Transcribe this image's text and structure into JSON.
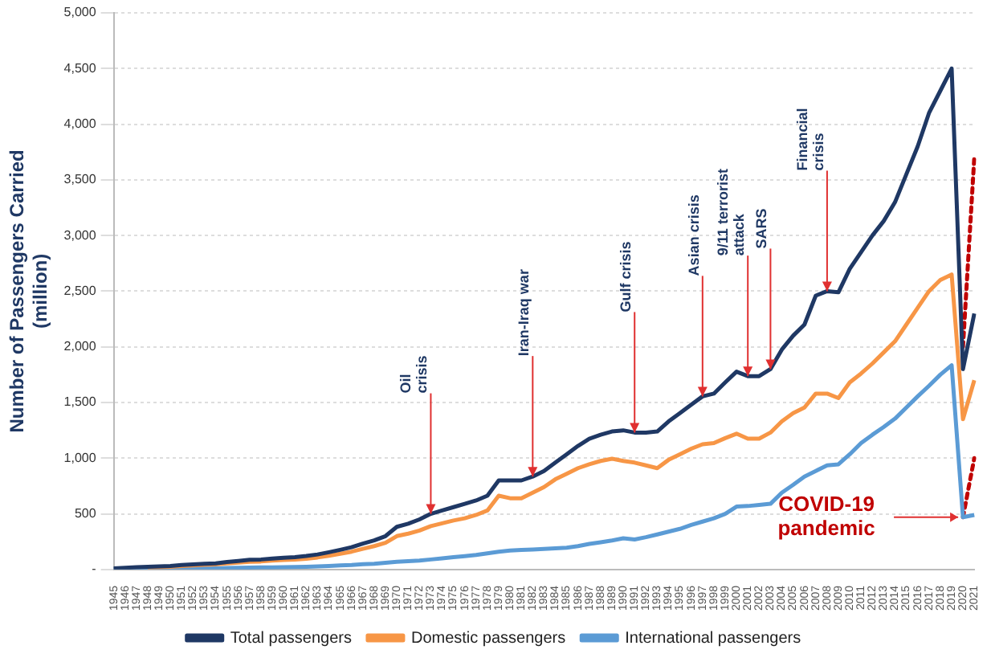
{
  "chart_data": {
    "type": "line",
    "ylabel": "Number of Passengers Carried\n(million)",
    "categories": [
      "1945",
      "1946",
      "1947",
      "1948",
      "1949",
      "1950",
      "1951",
      "1952",
      "1953",
      "1954",
      "1955",
      "1956",
      "1957",
      "1958",
      "1959",
      "1960",
      "1961",
      "1962",
      "1963",
      "1964",
      "1965",
      "1966",
      "1967",
      "1968",
      "1969",
      "1970",
      "1971",
      "1972",
      "1973",
      "1974",
      "1975",
      "1976",
      "1977",
      "1978",
      "1979",
      "1980",
      "1981",
      "1982",
      "1983",
      "1984",
      "1985",
      "1986",
      "1987",
      "1988",
      "1989",
      "1990",
      "1991",
      "1992",
      "1993",
      "1994",
      "1995",
      "1996",
      "1997",
      "1998",
      "1999",
      "2000",
      "2001",
      "2002",
      "2003",
      "2004",
      "2005",
      "2006",
      "2007",
      "2008",
      "2009",
      "2010",
      "2011",
      "2012",
      "2013",
      "2014",
      "2015",
      "2016",
      "2017",
      "2018",
      "2019",
      "2020",
      "2021"
    ],
    "series": [
      {
        "name": "Total passengers",
        "color": "#1f3864",
        "values": [
          10,
          15,
          20,
          24,
          27,
          31,
          40,
          46,
          52,
          55,
          68,
          77,
          87,
          90,
          99,
          106,
          111,
          121,
          135,
          155,
          177,
          200,
          233,
          262,
          300,
          383,
          411,
          450,
          500,
          530,
          560,
          590,
          620,
          663,
          800,
          800,
          800,
          835,
          885,
          960,
          1035,
          1110,
          1175,
          1210,
          1240,
          1250,
          1230,
          1230,
          1240,
          1330,
          1405,
          1480,
          1555,
          1580,
          1680,
          1777,
          1737,
          1737,
          1800,
          1975,
          2100,
          2200,
          2460,
          2500,
          2490,
          2700,
          2850,
          3000,
          3130,
          3300,
          3550,
          3800,
          4100,
          4300,
          4500,
          1800,
          2300
        ]
      },
      {
        "name": "Domestic passengers",
        "color": "#f79646",
        "values": [
          null,
          null,
          null,
          19,
          21,
          25,
          32,
          37,
          42,
          45,
          55,
          62,
          70,
          72,
          80,
          85,
          89,
          97,
          108,
          124,
          141,
          160,
          186,
          210,
          240,
          300,
          322,
          350,
          390,
          415,
          440,
          460,
          490,
          530,
          663,
          640,
          640,
          690,
          740,
          810,
          860,
          910,
          945,
          975,
          995,
          975,
          960,
          935,
          910,
          985,
          1035,
          1085,
          1125,
          1135,
          1180,
          1220,
          1175,
          1175,
          1230,
          1330,
          1405,
          1455,
          1580,
          1580,
          1540,
          1680,
          1760,
          1850,
          1950,
          2050,
          2200,
          2350,
          2500,
          2600,
          2650,
          1350,
          1700
        ]
      },
      {
        "name": "International passengers",
        "color": "#5b9bd5",
        "values": [
          2,
          3,
          4,
          5,
          6,
          6,
          8,
          9,
          10,
          10,
          13,
          15,
          17,
          18,
          19,
          21,
          22,
          24,
          27,
          31,
          36,
          40,
          47,
          52,
          60,
          70,
          75,
          80,
          90,
          100,
          110,
          120,
          130,
          145,
          160,
          170,
          175,
          180,
          185,
          190,
          195,
          210,
          230,
          245,
          260,
          280,
          270,
          290,
          315,
          340,
          365,
          400,
          430,
          460,
          500,
          565,
          570,
          580,
          590,
          690,
          760,
          835,
          885,
          935,
          945,
          1035,
          1135,
          1210,
          1280,
          1355,
          1455,
          1555,
          1650,
          1750,
          1835,
          470,
          490
        ]
      },
      {
        "color": "#c00000",
        "line_style": "dashed",
        "values": [
          null,
          null,
          null,
          null,
          null,
          null,
          null,
          null,
          null,
          null,
          null,
          null,
          null,
          null,
          null,
          null,
          null,
          null,
          null,
          null,
          null,
          null,
          null,
          null,
          null,
          null,
          null,
          null,
          null,
          null,
          null,
          null,
          null,
          null,
          null,
          null,
          null,
          null,
          null,
          null,
          null,
          null,
          null,
          null,
          null,
          null,
          null,
          null,
          null,
          null,
          null,
          null,
          null,
          null,
          null,
          null,
          null,
          null,
          null,
          null,
          null,
          null,
          null,
          null,
          null,
          null,
          null,
          null,
          null,
          null,
          null,
          null,
          null,
          null,
          null,
          2000,
          3700
        ]
      },
      {
        "color": "#c00000",
        "line_style": "dashed",
        "values": [
          null,
          null,
          null,
          null,
          null,
          null,
          null,
          null,
          null,
          null,
          null,
          null,
          null,
          null,
          null,
          null,
          null,
          null,
          null,
          null,
          null,
          null,
          null,
          null,
          null,
          null,
          null,
          null,
          null,
          null,
          null,
          null,
          null,
          null,
          null,
          null,
          null,
          null,
          null,
          null,
          null,
          null,
          null,
          null,
          null,
          null,
          null,
          null,
          null,
          null,
          null,
          null,
          null,
          null,
          null,
          null,
          null,
          null,
          null,
          null,
          null,
          null,
          null,
          null,
          null,
          null,
          null,
          null,
          null,
          null,
          null,
          null,
          null,
          null,
          null,
          470,
          1000
        ]
      }
    ],
    "ylim": [
      0,
      5000
    ],
    "yticks": [
      {
        "value": 0,
        "label": "-"
      },
      {
        "value": 500,
        "label": "500"
      },
      {
        "value": 1000,
        "label": "1,000"
      },
      {
        "value": 1500,
        "label": "1,500"
      },
      {
        "value": 2000,
        "label": "2,000"
      },
      {
        "value": 2500,
        "label": "2,500"
      },
      {
        "value": 3000,
        "label": "3,000"
      },
      {
        "value": 3500,
        "label": "3,500"
      },
      {
        "value": 4000,
        "label": "4,000"
      },
      {
        "value": 4500,
        "label": "4,500"
      },
      {
        "value": 5000,
        "label": "5,000"
      }
    ],
    "grid": "y",
    "legend": "bottom",
    "marker": "none",
    "line_style": "solid",
    "annotations": [
      {
        "text": "Oil\ncrisis",
        "x": "1973",
        "y": 500
      },
      {
        "text": "Iran-Iraq war",
        "x": "1982",
        "y": 835
      },
      {
        "text": "Gulf crisis",
        "x": "1991",
        "y": 1230
      },
      {
        "text": "Asian crisis",
        "x": "1997",
        "y": 1555
      },
      {
        "text": "9/11 terrorist\nattack",
        "x": "2001",
        "y": 1737
      },
      {
        "text": "SARS",
        "x": "2003",
        "y": 1800
      },
      {
        "text": "Financial\ncrisis",
        "x": "2008",
        "y": 2500
      },
      {
        "text": "COVID-19\npandemic",
        "x": "2020",
        "y": 470
      }
    ]
  }
}
